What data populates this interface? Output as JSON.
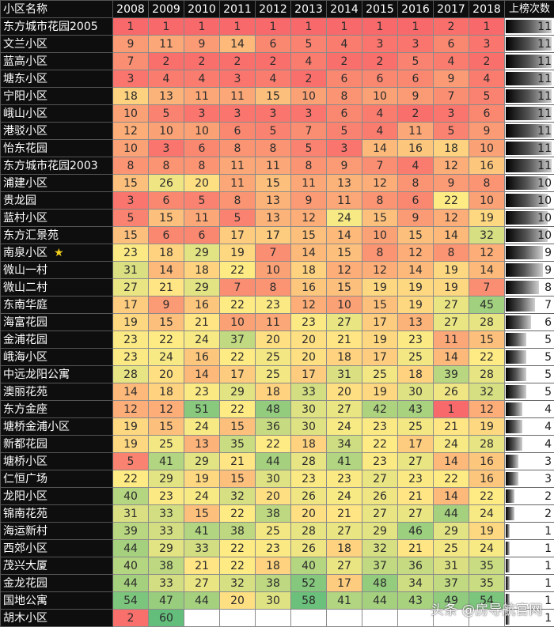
{
  "table": {
    "header_name": "小区名称",
    "header_count": "上榜次数",
    "years": [
      "2008",
      "2009",
      "2010",
      "2011",
      "2012",
      "2013",
      "2014",
      "2015",
      "2016",
      "2017",
      "2018"
    ],
    "rows": [
      {
        "name": "东方城市花园2005",
        "ranks": [
          1,
          1,
          1,
          1,
          1,
          1,
          1,
          1,
          1,
          2,
          1
        ],
        "count": 11
      },
      {
        "name": "文兰小区",
        "ranks": [
          9,
          11,
          9,
          14,
          6,
          5,
          4,
          3,
          3,
          6,
          3
        ],
        "count": 11
      },
      {
        "name": "蓝高小区",
        "ranks": [
          7,
          2,
          2,
          2,
          2,
          4,
          2,
          2,
          5,
          4,
          2
        ],
        "count": 11
      },
      {
        "name": "塘东小区",
        "ranks": [
          3,
          4,
          4,
          3,
          4,
          2,
          6,
          6,
          6,
          9,
          4
        ],
        "count": 11
      },
      {
        "name": "宁阳小区",
        "ranks": [
          18,
          13,
          11,
          11,
          15,
          10,
          8,
          10,
          9,
          7,
          5
        ],
        "count": 11
      },
      {
        "name": "峨山小区",
        "ranks": [
          10,
          5,
          3,
          3,
          3,
          3,
          6,
          4,
          2,
          3,
          6
        ],
        "count": 11
      },
      {
        "name": "港驳小区",
        "ranks": [
          12,
          10,
          10,
          6,
          5,
          7,
          5,
          4,
          11,
          5,
          9
        ],
        "count": 11
      },
      {
        "name": "怡东花园",
        "ranks": [
          10,
          3,
          6,
          8,
          8,
          5,
          3,
          14,
          16,
          18,
          10
        ],
        "count": 11
      },
      {
        "name": "东方城市花园2003",
        "ranks": [
          8,
          8,
          8,
          11,
          11,
          8,
          9,
          7,
          4,
          12,
          16
        ],
        "count": 11
      },
      {
        "name": "浦建小区",
        "ranks": [
          15,
          26,
          20,
          11,
          15,
          11,
          13,
          12,
          8,
          9,
          8
        ],
        "count": 10
      },
      {
        "name": "贵龙园",
        "ranks": [
          3,
          6,
          5,
          8,
          13,
          9,
          11,
          8,
          6,
          22,
          10
        ],
        "count": 10
      },
      {
        "name": "蓝村小区",
        "ranks": [
          5,
          15,
          11,
          5,
          13,
          12,
          24,
          15,
          9,
          12,
          19
        ],
        "count": 10
      },
      {
        "name": "东方汇景苑",
        "ranks": [
          15,
          6,
          6,
          17,
          17,
          15,
          14,
          10,
          15,
          14,
          32
        ],
        "count": 10
      },
      {
        "name": "南泉小区",
        "star": "★",
        "ranks": [
          23,
          18,
          29,
          19,
          7,
          14,
          15,
          8,
          12,
          8,
          12
        ],
        "count": 9
      },
      {
        "name": "微山一村",
        "ranks": [
          31,
          14,
          18,
          22,
          10,
          18,
          12,
          12,
          14,
          19,
          14
        ],
        "count": 9
      },
      {
        "name": "微山二村",
        "ranks": [
          27,
          21,
          29,
          7,
          8,
          16,
          15,
          19,
          19,
          19,
          7
        ],
        "count": 8
      },
      {
        "name": "东南华庭",
        "ranks": [
          17,
          9,
          16,
          22,
          23,
          12,
          10,
          15,
          19,
          27,
          45
        ],
        "count": 7
      },
      {
        "name": "海富花园",
        "ranks": [
          19,
          15,
          21,
          10,
          11,
          23,
          27,
          17,
          13,
          27,
          28
        ],
        "count": 6
      },
      {
        "name": "金浦花园",
        "ranks": [
          23,
          22,
          24,
          37,
          20,
          20,
          21,
          19,
          23,
          11,
          15
        ],
        "count": 5
      },
      {
        "name": "峨海小区",
        "ranks": [
          23,
          24,
          16,
          22,
          25,
          20,
          18,
          17,
          25,
          14,
          22
        ],
        "count": 5
      },
      {
        "name": "中远龙阳公寓",
        "ranks": [
          28,
          20,
          14,
          17,
          25,
          17,
          31,
          25,
          18,
          39,
          28
        ],
        "count": 5
      },
      {
        "name": "澳丽花苑",
        "ranks": [
          14,
          18,
          23,
          29,
          18,
          33,
          20,
          19,
          30,
          26,
          32
        ],
        "count": 5
      },
      {
        "name": "东方金座",
        "ranks": [
          12,
          12,
          51,
          22,
          48,
          30,
          27,
          42,
          43,
          1,
          12
        ],
        "count": 4
      },
      {
        "name": "塘桥金浦小区",
        "ranks": [
          19,
          15,
          24,
          15,
          36,
          30,
          24,
          23,
          25,
          21,
          19
        ],
        "count": 4
      },
      {
        "name": "新都花园",
        "ranks": [
          19,
          25,
          13,
          35,
          22,
          18,
          34,
          22,
          17,
          24,
          28
        ],
        "count": 4
      },
      {
        "name": "塘桥小区",
        "ranks": [
          5,
          41,
          29,
          21,
          44,
          28,
          41,
          23,
          27,
          14,
          16
        ],
        "count": 3
      },
      {
        "name": "仁恒广场",
        "ranks": [
          22,
          29,
          19,
          15,
          30,
          23,
          23,
          27,
          23,
          22,
          16
        ],
        "count": 3
      },
      {
        "name": "龙阳小区",
        "ranks": [
          40,
          23,
          24,
          32,
          20,
          26,
          24,
          26,
          21,
          14,
          22
        ],
        "count": 2
      },
      {
        "name": "锦南花苑",
        "ranks": [
          31,
          33,
          15,
          22,
          38,
          20,
          21,
          27,
          27,
          44,
          24
        ],
        "count": 2
      },
      {
        "name": "海运新村",
        "ranks": [
          39,
          33,
          41,
          38,
          25,
          28,
          27,
          29,
          46,
          29,
          19
        ],
        "count": 1
      },
      {
        "name": "西郊小区",
        "ranks": [
          44,
          29,
          33,
          22,
          23,
          26,
          18,
          32,
          21,
          25,
          24
        ],
        "count": 1
      },
      {
        "name": "茂兴大厦",
        "ranks": [
          40,
          38,
          21,
          22,
          18,
          40,
          27,
          37,
          36,
          31,
          35
        ],
        "count": 1
      },
      {
        "name": "金龙花园",
        "ranks": [
          44,
          33,
          27,
          32,
          38,
          52,
          17,
          48,
          34,
          37,
          35
        ],
        "count": 1
      },
      {
        "name": "国地公寓",
        "ranks": [
          54,
          47,
          44,
          20,
          30,
          58,
          41,
          44,
          43,
          49,
          54
        ],
        "count": 1
      },
      {
        "name": "胡木小区",
        "ranks": [
          2,
          60,
          null,
          null,
          null,
          null,
          null,
          null,
          null,
          null,
          null
        ],
        "count": 1
      }
    ],
    "max_count": 11
  },
  "colors": {
    "low_rank": "#f8696b",
    "mid_rank": "#ffeb84",
    "high_rank": "#63be7b",
    "header_bg": "#0e0e0e"
  },
  "watermark": "头条 @房导航官网",
  "chart_data": {
    "type": "heatmap",
    "title": "",
    "xlabel": "",
    "ylabel": "小区名称",
    "x": [
      "2008",
      "2009",
      "2010",
      "2011",
      "2012",
      "2013",
      "2014",
      "2015",
      "2016",
      "2017",
      "2018",
      "上榜次数"
    ],
    "y": [
      "东方城市花园2005",
      "文兰小区",
      "蓝高小区",
      "塘东小区",
      "宁阳小区",
      "峨山小区",
      "港驳小区",
      "怡东花园",
      "东方城市花园2003",
      "浦建小区",
      "贵龙园",
      "蓝村小区",
      "东方汇景苑",
      "南泉小区",
      "微山一村",
      "微山二村",
      "东南华庭",
      "海富花园",
      "金浦花园",
      "峨海小区",
      "中远龙阳公寓",
      "澳丽花苑",
      "东方金座",
      "塘桥金浦小区",
      "新都花园",
      "塘桥小区",
      "仁恒广场",
      "龙阳小区",
      "锦南花苑",
      "海运新村",
      "西郊小区",
      "茂兴大厦",
      "金龙花园",
      "国地公寓",
      "胡木小区"
    ],
    "values_note": "rank per year; see table.rows; last column is count of appearances (data bar)",
    "color_scale": [
      "#f8696b (rank 1)",
      "#ffeb84 (mid)",
      "#63be7b (rank ~60)"
    ],
    "legend": "none"
  }
}
